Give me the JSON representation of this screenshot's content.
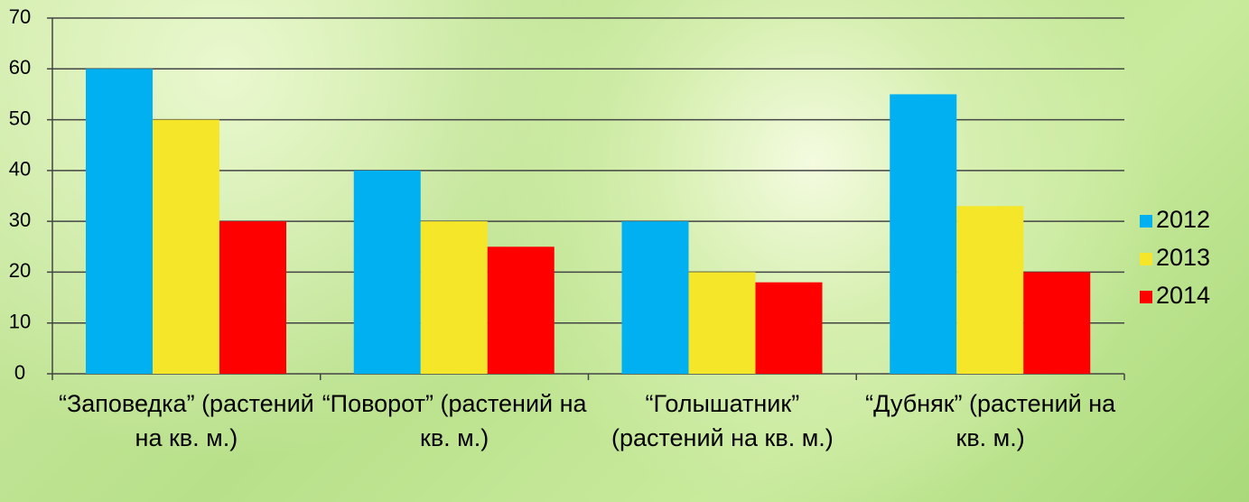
{
  "chart_data": {
    "type": "bar",
    "categories": [
      "“Заповедка” (растений на кв. м.)",
      "“Поворот” (растений на кв. м.)",
      "“Голышатник” (растений на кв. м.)",
      "“Дубняк” (растений на кв. м.)"
    ],
    "series": [
      {
        "name": "2012",
        "color": "#00b0f0",
        "values": [
          60,
          40,
          30,
          55
        ]
      },
      {
        "name": "2013",
        "color": "#f5e62a",
        "values": [
          50,
          30,
          20,
          33
        ]
      },
      {
        "name": "2014",
        "color": "#ff0000",
        "values": [
          30,
          25,
          18,
          20
        ]
      }
    ],
    "ylim": [
      0,
      70
    ],
    "yticks": [
      0,
      10,
      20,
      30,
      40,
      50,
      60,
      70
    ],
    "grid": true,
    "legend": "right"
  }
}
